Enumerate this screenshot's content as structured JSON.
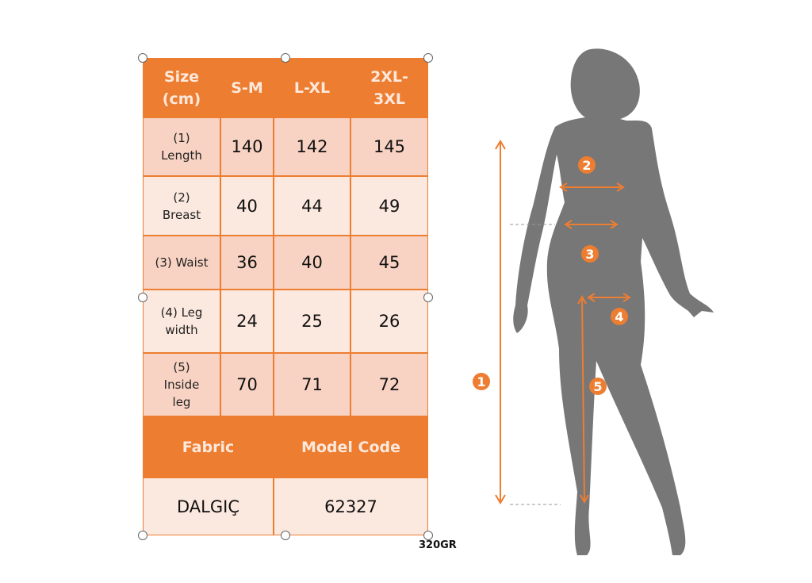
{
  "size_table": {
    "header": [
      "Size\n(cm)",
      "S-M",
      "L-XL",
      "2XL-\n3XL"
    ],
    "rows": [
      {
        "label": "(1)\nLength",
        "values": [
          "140",
          "142",
          "145"
        ]
      },
      {
        "label": "(2)\nBreast",
        "values": [
          "40",
          "44",
          "49"
        ]
      },
      {
        "label": "(3) Waist",
        "values": [
          "36",
          "40",
          "45"
        ]
      },
      {
        "label": "(4) Leg\nwidth",
        "values": [
          "24",
          "25",
          "26"
        ]
      },
      {
        "label": "(5)\nInside\nleg",
        "values": [
          "70",
          "71",
          "72"
        ]
      }
    ],
    "fabric_label": "Fabric",
    "model_code_label": "Model Code",
    "fabric_value": "DALGIÇ",
    "model_code_value": "62327"
  },
  "weight_note": "320GR",
  "figure": {
    "markers": [
      "1",
      "2",
      "3",
      "4",
      "5"
    ],
    "accent_color": "#ED7D31",
    "silhouette_color": "#777777"
  }
}
